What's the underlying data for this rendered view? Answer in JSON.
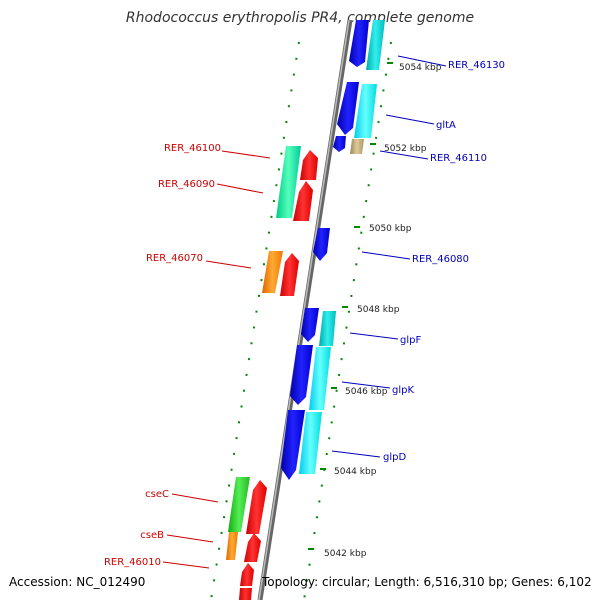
{
  "title": "Rhodococcus erythropolis PR4, complete genome",
  "footer": {
    "accession": "Accession: NC_012490",
    "summary": "Topology: circular; Length: 6,516,310 bp; Genes: 6,102"
  },
  "ticks": [
    "5054 kbp",
    "5052 kbp",
    "5050 kbp",
    "5048 kbp",
    "5046 kbp",
    "5044 kbp",
    "5042 kbp"
  ],
  "genes_left": [
    "RER_46100",
    "RER_46090",
    "RER_46070",
    "cseC",
    "cseB",
    "RER_46010"
  ],
  "genes_right": [
    "RER_46130",
    "gltA",
    "RER_46110",
    "RER_46080",
    "glpF",
    "glpK",
    "glpD"
  ],
  "colors": {
    "forward_gene": "#ee0000",
    "forward_label": "#cc0000",
    "reverse_gene": "#0000dd",
    "reverse_label": "#0000bb",
    "cds_teal": "#00cccc",
    "cds_green": "#22cc22",
    "cds_aqua": "#00eeaa",
    "cds_orange": "#ff8800",
    "cds_khaki": "#bbaa77",
    "backbone": "#888888",
    "tick": "#008800"
  }
}
